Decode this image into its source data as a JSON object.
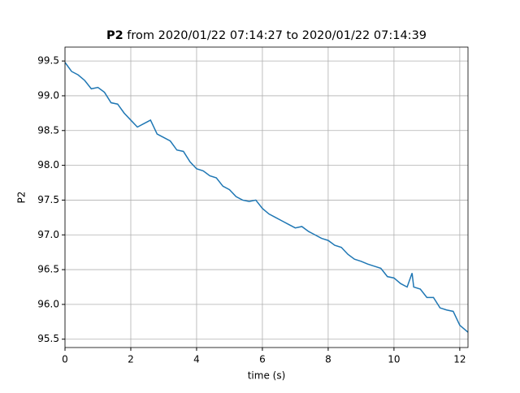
{
  "chart_data": {
    "type": "line",
    "title_bold": "P2",
    "title": "from 2020/01/22 07:14:27 to 2020/01/22 07:14:39",
    "xlabel": "time (s)",
    "ylabel": "P2",
    "xlim": [
      0,
      12.25
    ],
    "ylim": [
      95.38,
      99.7
    ],
    "xticks": [
      0,
      2,
      4,
      6,
      8,
      10,
      12
    ],
    "yticks": [
      95.5,
      {
        "value": 96,
        "label": "96.0"
      },
      96.5,
      {
        "value": 97,
        "label": "97.0"
      },
      97.5,
      {
        "value": 98,
        "label": "98.0"
      },
      98.5,
      {
        "value": 99,
        "label": "99.0"
      },
      99.5
    ],
    "grid": true,
    "x": [
      0,
      0.2,
      0.4,
      0.6,
      0.8,
      1.0,
      1.2,
      1.4,
      1.6,
      1.8,
      2.0,
      2.2,
      2.4,
      2.6,
      2.8,
      3.0,
      3.2,
      3.4,
      3.6,
      3.8,
      4.0,
      4.2,
      4.4,
      4.6,
      4.8,
      5.0,
      5.2,
      5.4,
      5.6,
      5.8,
      6.0,
      6.2,
      6.4,
      6.6,
      6.8,
      7.0,
      7.2,
      7.4,
      7.6,
      7.8,
      8.0,
      8.2,
      8.4,
      8.6,
      8.8,
      9.0,
      9.2,
      9.4,
      9.6,
      9.8,
      10.0,
      10.2,
      10.4,
      10.55,
      10.6,
      10.8,
      11.0,
      11.2,
      11.4,
      11.6,
      11.8,
      12.0,
      12.2,
      12.25
    ],
    "series": [
      {
        "name": "P2",
        "color": "#1f77b4",
        "values": [
          99.48,
          99.35,
          99.3,
          99.22,
          99.1,
          99.12,
          99.05,
          98.9,
          98.88,
          98.75,
          98.65,
          98.55,
          98.6,
          98.65,
          98.45,
          98.4,
          98.35,
          98.22,
          98.2,
          98.05,
          97.95,
          97.92,
          97.85,
          97.82,
          97.7,
          97.65,
          97.55,
          97.5,
          97.48,
          97.5,
          97.38,
          97.3,
          97.25,
          97.2,
          97.15,
          97.1,
          97.12,
          97.05,
          97.0,
          96.95,
          96.92,
          96.85,
          96.82,
          96.72,
          96.65,
          96.62,
          96.58,
          96.55,
          96.52,
          96.4,
          96.38,
          96.3,
          96.25,
          96.45,
          96.25,
          96.22,
          96.1,
          96.1,
          95.95,
          95.92,
          95.9,
          95.7,
          95.62,
          95.6
        ]
      }
    ]
  }
}
